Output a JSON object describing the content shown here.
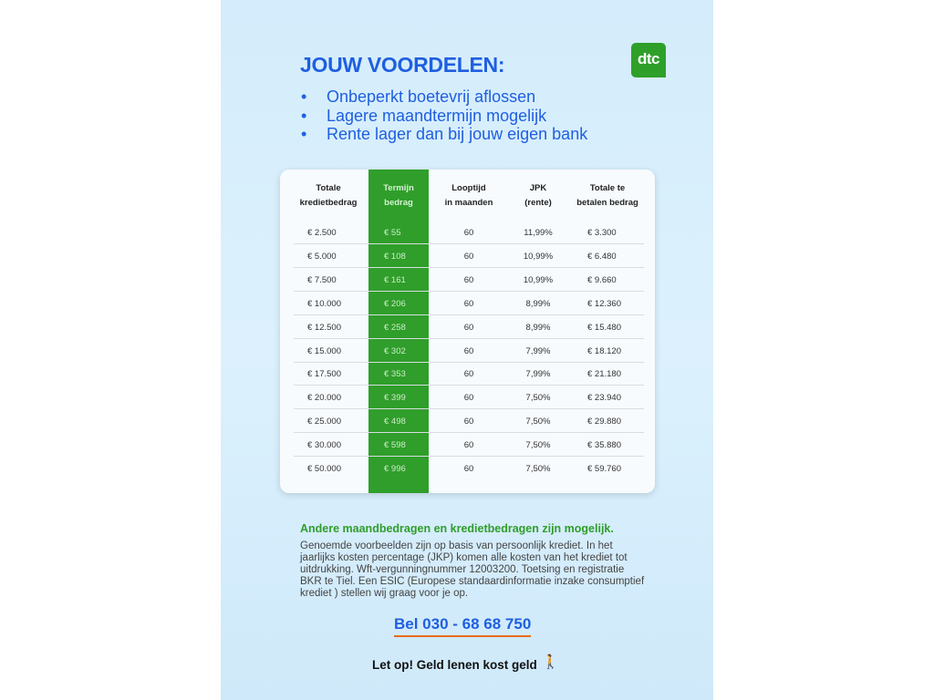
{
  "title": "JOUW VOORDELEN:",
  "logo": "dtc",
  "benefits": [
    "Onbeperkt boetevrij aflossen",
    "Lagere maandtermijn mogelijk",
    "Rente lager dan bij jouw eigen bank"
  ],
  "table": {
    "headers": [
      [
        "Totale",
        "kredietbedrag"
      ],
      [
        "Termijn",
        "bedrag"
      ],
      [
        "Looptijd",
        "in maanden"
      ],
      [
        "JPK",
        "(rente)"
      ],
      [
        "Totale te",
        "betalen bedrag"
      ]
    ],
    "rows": [
      [
        "€ 2.500",
        "€ 55",
        "60",
        "11,99%",
        "€ 3.300"
      ],
      [
        "€ 5.000",
        "€ 108",
        "60",
        "10,99%",
        "€ 6.480"
      ],
      [
        "€ 7.500",
        "€ 161",
        "60",
        "10,99%",
        "€ 9.660"
      ],
      [
        "€ 10.000",
        "€ 206",
        "60",
        "8,99%",
        "€ 12.360"
      ],
      [
        "€ 12.500",
        "€ 258",
        "60",
        "8,99%",
        "€ 15.480"
      ],
      [
        "€ 15.000",
        "€ 302",
        "60",
        "7,99%",
        "€ 18.120"
      ],
      [
        "€ 17.500",
        "€ 353",
        "60",
        "7,99%",
        "€ 21.180"
      ],
      [
        "€ 20.000",
        "€ 399",
        "60",
        "7,50%",
        "€ 23.940"
      ],
      [
        "€ 25.000",
        "€ 498",
        "60",
        "7,50%",
        "€ 29.880"
      ],
      [
        "€ 30.000",
        "€ 598",
        "60",
        "7,50%",
        "€ 35.880"
      ],
      [
        "€ 50.000",
        "€ 996",
        "60",
        "7,50%",
        "€ 59.760"
      ]
    ]
  },
  "note_heading": "Andere maandbedragen en kredietbedragen zijn mogelijk.",
  "note": "Genoemde voorbeelden zijn op basis van persoonlijk krediet. In het jaarlijks kosten percentage (JKP) komen alle kosten van het krediet tot uitdrukking. Wft-vergunningnummer 12003200. Toetsing en registratie BKR te Tiel. Een ESIC (Europese standaardinformatie inzake consumptief krediet ) stellen wij graag voor je op.",
  "phone": "Bel 030 - 68 68 750",
  "warning": "Let op! Geld lenen kost geld",
  "colors": {
    "blue": "#1f5fe0",
    "green": "#2f9e2a",
    "underline": "#e86a1a"
  }
}
